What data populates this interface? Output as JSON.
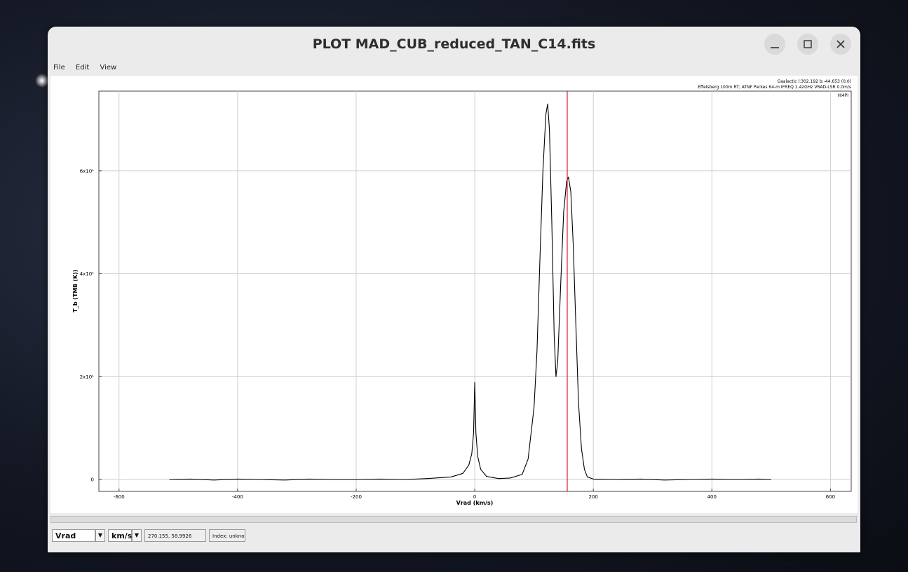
{
  "window": {
    "title": "PLOT MAD_CUB_reduced_TAN_C14.fits",
    "menu": [
      "File",
      "Edit",
      "View"
    ]
  },
  "chart_data": {
    "type": "line",
    "annotations": [
      "Gaalactic l:302.192 b:-44.653 (0,0)",
      "Effelsberg 100m RT; ATNF Parkes 64-m IFREQ 1.42GHz VRAD-LSR 0.0m/s",
      "HI4PI"
    ],
    "x_label": "Vrad (km/s)",
    "y_label": "T_b (TMB (K))",
    "x": [
      -515,
      -480,
      -440,
      -400,
      -360,
      -320,
      -280,
      -240,
      -200,
      -160,
      -120,
      -80,
      -40,
      -20,
      -10,
      -5,
      -2,
      0,
      2,
      5,
      10,
      20,
      40,
      60,
      80,
      90,
      100,
      105,
      110,
      115,
      120,
      123,
      126,
      130,
      134,
      137,
      140,
      145,
      150,
      155,
      158,
      162,
      166,
      170,
      175,
      180,
      185,
      190,
      200,
      240,
      280,
      320,
      360,
      400,
      440,
      480,
      500
    ],
    "values": [
      0,
      0.1,
      -0.1,
      0.1,
      0,
      -0.1,
      0.1,
      0,
      0,
      0.1,
      0,
      0.2,
      0.5,
      1.2,
      2.8,
      5,
      9,
      18.9,
      9,
      4.5,
      2,
      0.6,
      0.2,
      0.3,
      1,
      4,
      14,
      25,
      43,
      60,
      71,
      73,
      68,
      50,
      28,
      20,
      23,
      38,
      52,
      58,
      58.8,
      56,
      46,
      32,
      15,
      6,
      2,
      0.5,
      0.1,
      0,
      0.1,
      -0.1,
      0,
      0.1,
      0,
      0.1,
      0
    ],
    "color": "#000000",
    "marker_x": 156,
    "marker_color": "#d62020",
    "xlim": [
      -634,
      635
    ],
    "ylim": [
      -2.3,
      75.5
    ],
    "xticks": [
      -600,
      -400,
      -200,
      0,
      200,
      400,
      600
    ],
    "yticks": [
      0,
      {
        "value": 20,
        "label": "2x10¹"
      },
      {
        "value": 40,
        "label": "4x10¹"
      },
      {
        "value": 60,
        "label": "6x10¹"
      }
    ],
    "grid": true
  },
  "status_bar": {
    "axis_select": "Vrad",
    "unit_select": "km/s",
    "coordinates": "270.155, 58.9926",
    "index": "Index: unknow"
  }
}
